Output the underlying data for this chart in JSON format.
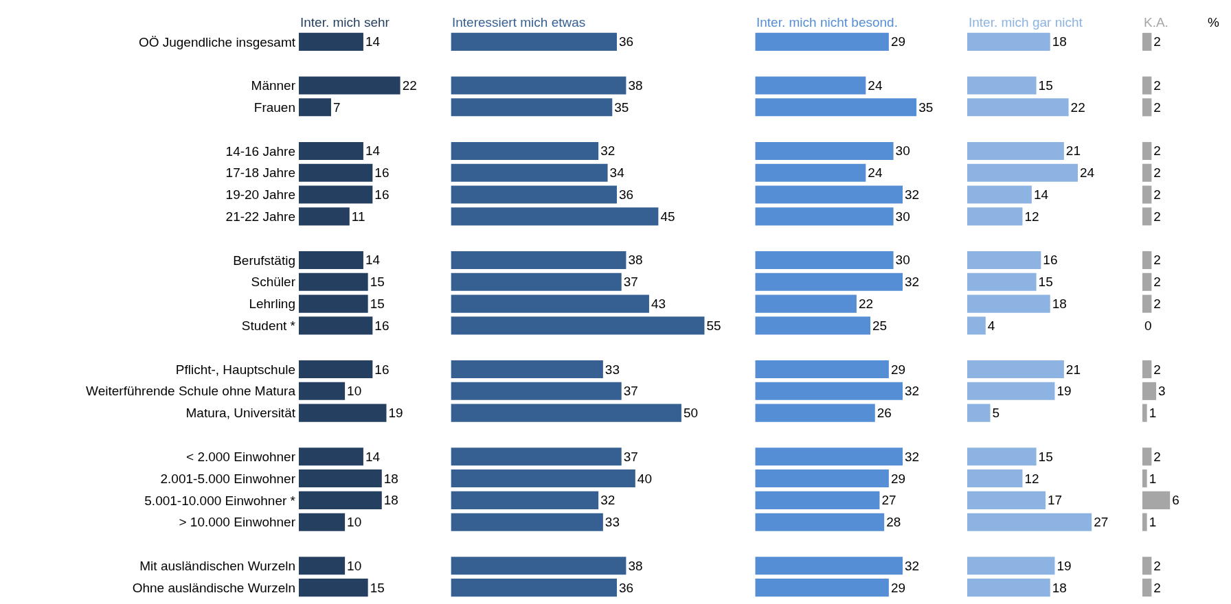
{
  "chart_data": [
    {
      "type": "bar",
      "orientation": "horizontal",
      "title": "Inter. mich sehr",
      "color": "#243f60",
      "tick_labels": "y",
      "data_labels": true,
      "categories": [
        "OÖ Jugendliche insgesamt",
        null,
        "Männer",
        "Frauen",
        null,
        "14-16 Jahre",
        "17-18 Jahre",
        "19-20 Jahre",
        "21-22 Jahre",
        null,
        "Berufstätig",
        "Schüler",
        "Lehrling",
        "Student *",
        null,
        "Pflicht-, Hauptschule",
        "Weiterführende Schule ohne Matura",
        "Matura, Universität",
        null,
        "< 2.000 Einwohner",
        "2.001-5.000 Einwohner",
        "5.001-10.000 Einwohner *",
        "> 10.000 Einwohner",
        null,
        "Mit ausländischen Wurzeln",
        "Ohne ausländische Wurzeln"
      ],
      "values": [
        14,
        null,
        22,
        7,
        null,
        14,
        16,
        16,
        11,
        null,
        14,
        15,
        15,
        16,
        null,
        16,
        10,
        19,
        null,
        14,
        18,
        18,
        10,
        null,
        10,
        15
      ]
    },
    {
      "type": "bar",
      "orientation": "horizontal",
      "title": "Interessiert mich etwas",
      "color": "#376092",
      "tick_labels": false,
      "data_labels": true,
      "categories": [
        "OÖ Jugendliche insgesamt",
        null,
        "Männer",
        "Frauen",
        null,
        "14-16 Jahre",
        "17-18 Jahre",
        "19-20 Jahre",
        "21-22 Jahre",
        null,
        "Berufstätig",
        "Schüler",
        "Lehrling",
        "Student *",
        null,
        "Pflicht-, Hauptschule",
        "Weiterführende Schule ohne Matura",
        "Matura, Universität",
        null,
        "< 2.000 Einwohner",
        "2.001-5.000 Einwohner",
        "5.001-10.000 Einwohner *",
        "> 10.000 Einwohner",
        null,
        "Mit ausländischen Wurzeln",
        "Ohne ausländische Wurzeln"
      ],
      "values": [
        36,
        null,
        38,
        35,
        null,
        32,
        34,
        36,
        45,
        null,
        38,
        37,
        43,
        55,
        null,
        33,
        37,
        50,
        null,
        37,
        40,
        32,
        33,
        null,
        38,
        36
      ]
    },
    {
      "type": "bar",
      "orientation": "horizontal",
      "title": "Inter. mich nicht besond.",
      "color": "#558ed5",
      "tick_labels": false,
      "data_labels": true,
      "categories": [
        "OÖ Jugendliche insgesamt",
        null,
        "Männer",
        "Frauen",
        null,
        "14-16 Jahre",
        "17-18 Jahre",
        "19-20 Jahre",
        "21-22 Jahre",
        null,
        "Berufstätig",
        "Schüler",
        "Lehrling",
        "Student *",
        null,
        "Pflicht-, Hauptschule",
        "Weiterführende Schule ohne Matura",
        "Matura, Universität",
        null,
        "< 2.000 Einwohner",
        "2.001-5.000 Einwohner",
        "5.001-10.000 Einwohner *",
        "> 10.000 Einwohner",
        null,
        "Mit ausländischen Wurzeln",
        "Ohne ausländische Wurzeln"
      ],
      "values": [
        29,
        null,
        24,
        35,
        null,
        30,
        24,
        32,
        30,
        null,
        30,
        32,
        22,
        25,
        null,
        29,
        32,
        26,
        null,
        32,
        29,
        27,
        28,
        null,
        32,
        29
      ]
    },
    {
      "type": "bar",
      "orientation": "horizontal",
      "title": "Inter. mich gar nicht",
      "color": "#8db3e2",
      "tick_labels": false,
      "data_labels": true,
      "categories": [
        "OÖ Jugendliche insgesamt",
        null,
        "Männer",
        "Frauen",
        null,
        "14-16 Jahre",
        "17-18 Jahre",
        "19-20 Jahre",
        "21-22 Jahre",
        null,
        "Berufstätig",
        "Schüler",
        "Lehrling",
        "Student *",
        null,
        "Pflicht-, Hauptschule",
        "Weiterführende Schule ohne Matura",
        "Matura, Universität",
        null,
        "< 2.000 Einwohner",
        "2.001-5.000 Einwohner",
        "5.001-10.000 Einwohner *",
        "> 10.000 Einwohner",
        null,
        "Mit ausländischen Wurzeln",
        "Ohne ausländische Wurzeln"
      ],
      "values": [
        18,
        null,
        15,
        22,
        null,
        21,
        24,
        14,
        12,
        null,
        16,
        15,
        18,
        4,
        null,
        21,
        19,
        5,
        null,
        15,
        12,
        17,
        27,
        null,
        19,
        18
      ]
    },
    {
      "type": "bar",
      "orientation": "horizontal",
      "title": "K.A.",
      "color": "#a6a6a6",
      "tick_labels": false,
      "data_labels": true,
      "annotations": [
        "%"
      ],
      "categories": [
        "OÖ Jugendliche insgesamt",
        null,
        "Männer",
        "Frauen",
        null,
        "14-16 Jahre",
        "17-18 Jahre",
        "19-20 Jahre",
        "21-22 Jahre",
        null,
        "Berufstätig",
        "Schüler",
        "Lehrling",
        "Student *",
        null,
        "Pflicht-, Hauptschule",
        "Weiterführende Schule ohne Matura",
        "Matura, Universität",
        null,
        "< 2.000 Einwohner",
        "2.001-5.000 Einwohner",
        "5.001-10.000 Einwohner *",
        "> 10.000 Einwohner",
        null,
        "Mit ausländischen Wurzeln",
        "Ohne ausländische Wurzeln"
      ],
      "values": [
        2,
        null,
        2,
        2,
        null,
        2,
        2,
        2,
        2,
        null,
        2,
        2,
        2,
        0,
        null,
        2,
        3,
        1,
        null,
        2,
        1,
        6,
        1,
        null,
        2,
        2
      ]
    }
  ]
}
